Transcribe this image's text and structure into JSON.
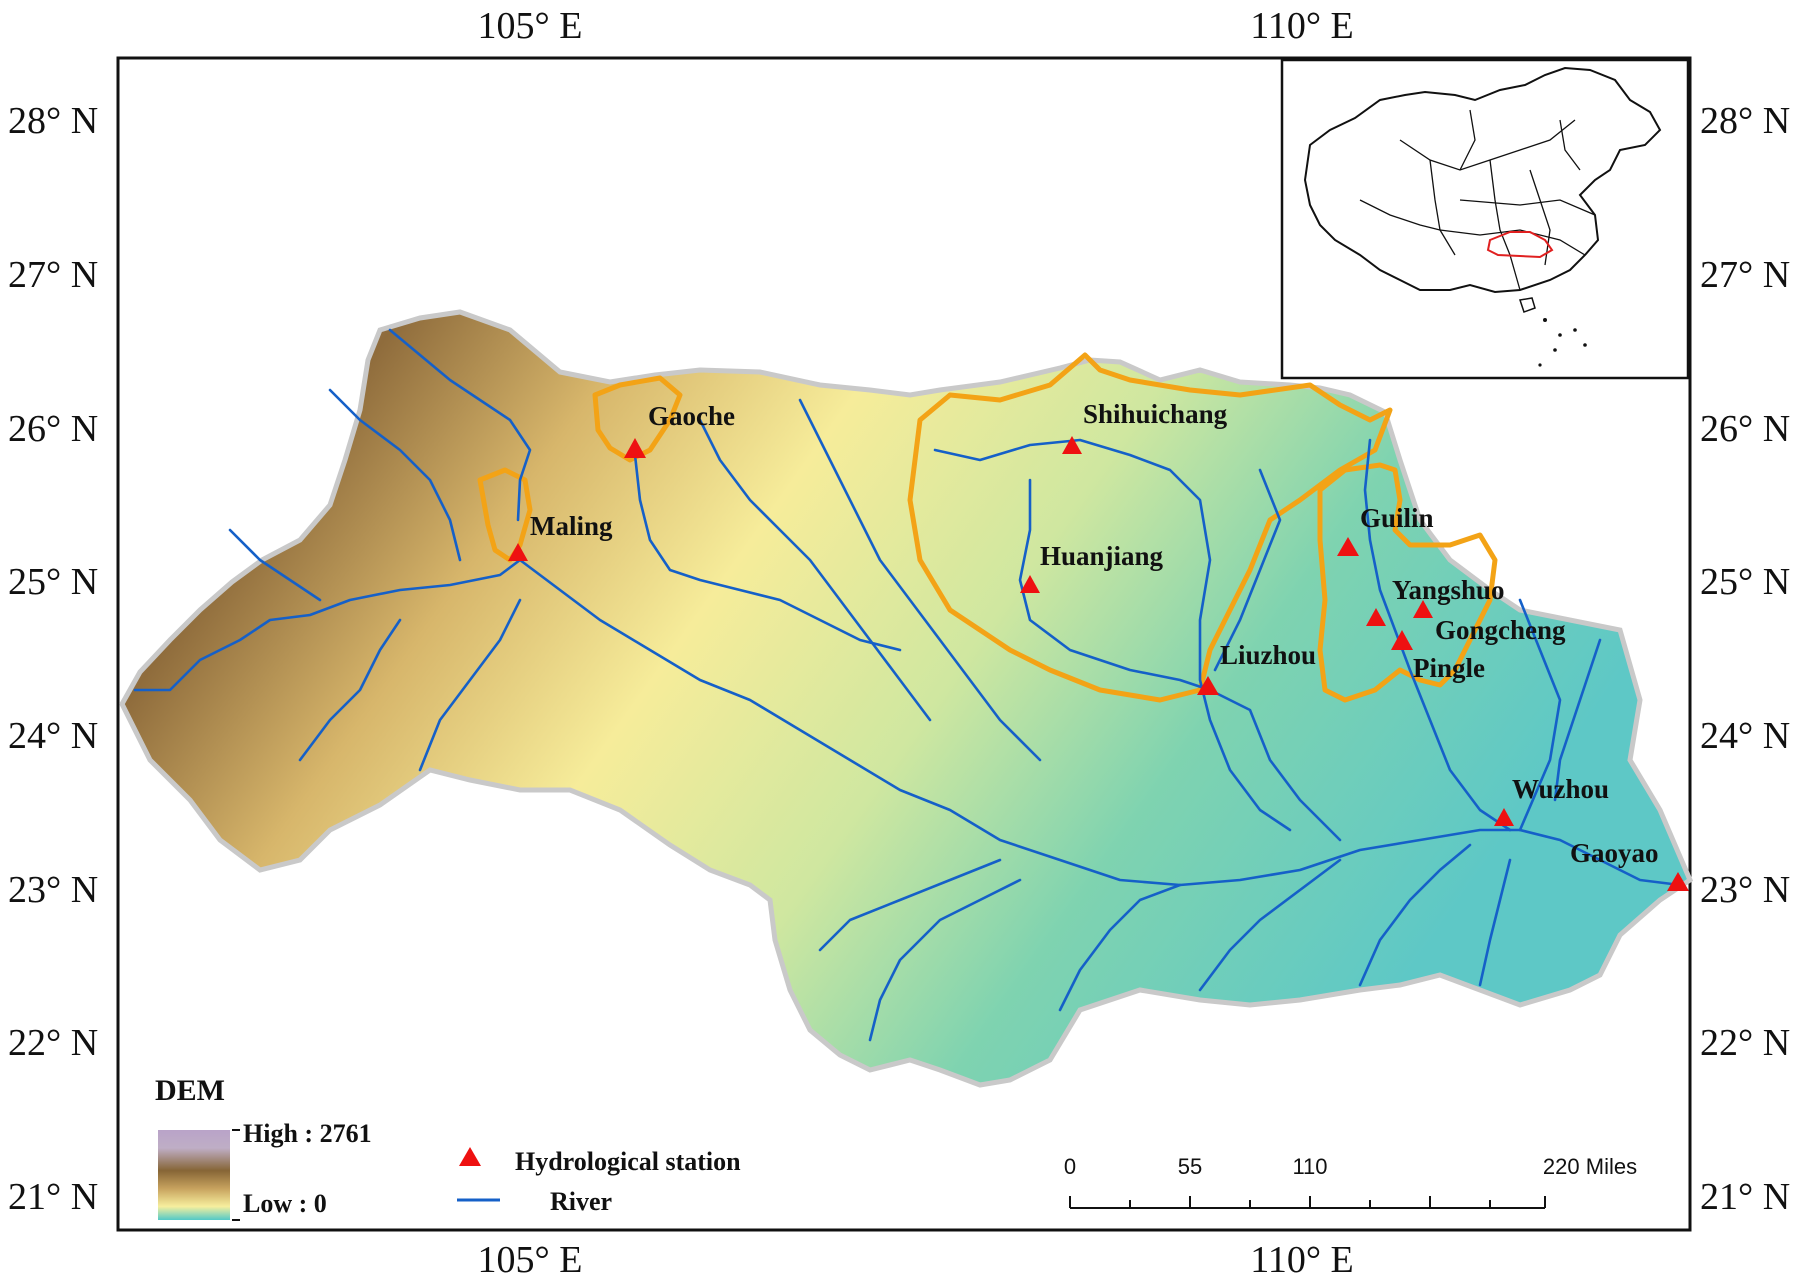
{
  "map": {
    "longitude_labels": [
      "105° E",
      "110° E"
    ],
    "latitude_labels": [
      "28° N",
      "27° N",
      "26° N",
      "25° N",
      "24° N",
      "23° N",
      "22° N",
      "21° N"
    ],
    "stations": [
      {
        "name": "Gaoche",
        "lon": 105.7,
        "lat": 25.85
      },
      {
        "name": "Maling",
        "lon": 104.9,
        "lat": 25.2
      },
      {
        "name": "Shihuichang",
        "lon": 108.3,
        "lat": 25.9
      },
      {
        "name": "Huanjiang",
        "lon": 108.0,
        "lat": 25.0
      },
      {
        "name": "Guilin",
        "lon": 110.3,
        "lat": 25.25
      },
      {
        "name": "Yangshuo",
        "lon": 110.8,
        "lat": 24.85
      },
      {
        "name": "Gongcheng",
        "lon": 110.5,
        "lat": 24.75
      },
      {
        "name": "Pingle",
        "lon": 110.65,
        "lat": 24.6
      },
      {
        "name": "Liuzhou",
        "lon": 109.4,
        "lat": 24.3
      },
      {
        "name": "Wuzhou",
        "lon": 111.3,
        "lat": 23.45
      },
      {
        "name": "Gaoyao",
        "lon": 112.45,
        "lat": 23.0
      }
    ]
  },
  "legend": {
    "dem_title": "DEM",
    "high_label": "High : 2761",
    "low_label": "Low : 0",
    "station_label": "Hydrological station",
    "river_label": "River"
  },
  "scalebar": {
    "labels": [
      "0",
      "55",
      "110",
      "220 Miles"
    ]
  },
  "colors": {
    "station": "#ee1111",
    "river": "#1560c8",
    "subbasin": "#f3a316",
    "inset_region": "#e02020"
  }
}
